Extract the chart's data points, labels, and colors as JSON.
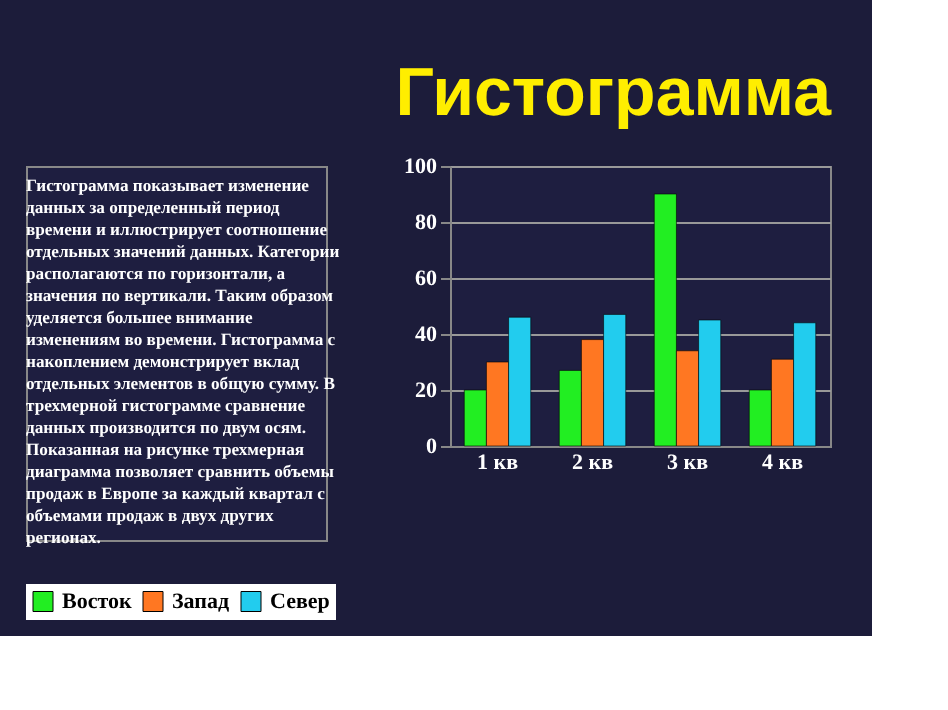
{
  "chart_data": {
    "type": "bar",
    "title": "Гистограмма",
    "annotations": [
      "Гистограмма показывает изменение данных за определенный период времени и иллюстрирует соотношение отдельных значений данных. Категории располагаются по горизонтали, а значения по вертикали. Таким образом уделяется большее внимание изменениям во времени. Гистограмма с накоплением демонстрирует вклад отдельных элементов в общую сумму. В трехмерной гистограмме сравнение данных производится по двум осям. Показанная на рисунке трехмерная диаграмма позволяет сравнить объемы продаж в Европе за каждый квартал с объемами продаж в двух других регионах."
    ],
    "categories": [
      "1 кв",
      "2 кв",
      "3 кв",
      "4 кв"
    ],
    "series": [
      {
        "name": "Восток",
        "color": "#22ee22",
        "values": [
          20,
          27,
          90,
          20
        ]
      },
      {
        "name": "Запад",
        "color": "#ff7722",
        "values": [
          30,
          38,
          34,
          31
        ]
      },
      {
        "name": "Север",
        "color": "#22ccee",
        "values": [
          46,
          47,
          45,
          44
        ]
      }
    ],
    "ylim": [
      0,
      100
    ],
    "yticks": [
      0,
      20,
      40,
      60,
      80,
      100
    ],
    "grid": "y",
    "legend": "bottom"
  }
}
